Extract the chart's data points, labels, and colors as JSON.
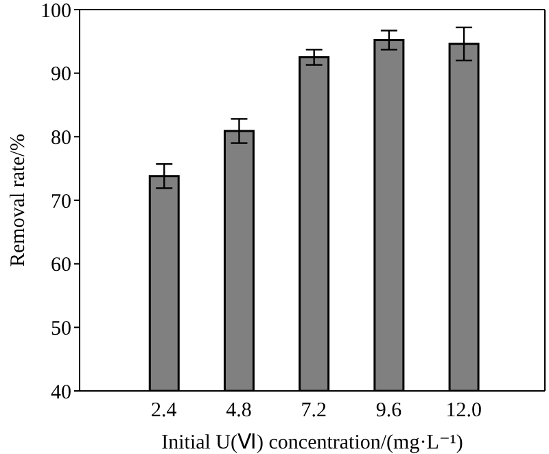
{
  "chart_data": {
    "type": "bar",
    "xlabel": "Initial U(Ⅵ) concentration/(mg·L⁻¹)",
    "ylabel": "Removal rate/%",
    "x": [
      2.4,
      4.8,
      7.2,
      9.6,
      12.0
    ],
    "xlim": [
      -0.3,
      14.6
    ],
    "xticks": [
      {
        "value": 2.4,
        "label": "2.4"
      },
      {
        "value": 4.8,
        "label": "4.8"
      },
      {
        "value": 7.2,
        "label": "7.2"
      },
      {
        "value": 9.6,
        "label": "9.6"
      },
      {
        "value": 12.0,
        "label": "12.0"
      }
    ],
    "values": [
      73.8,
      80.9,
      92.5,
      95.2,
      94.6
    ],
    "errors": [
      1.9,
      1.9,
      1.2,
      1.5,
      2.6
    ],
    "color": "#808080",
    "ylim": [
      40,
      100
    ],
    "yticks": [
      40,
      50,
      60,
      70,
      80,
      90,
      100
    ]
  }
}
